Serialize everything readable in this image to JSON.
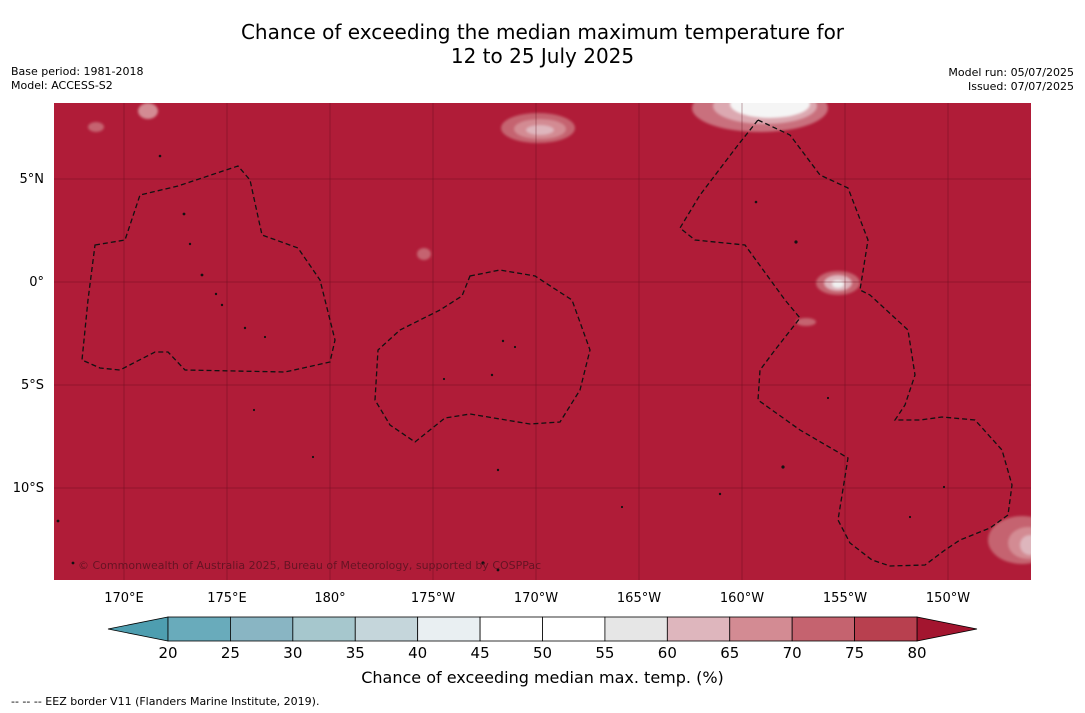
{
  "header": {
    "title_line1": "Chance of exceeding the median maximum temperature for",
    "title_line2": "12 to 25 July 2025",
    "base_period": "Base period: 1981-2018",
    "model": "Model: ACCESS-S2",
    "model_run": "Model run: 05/07/2025",
    "issued": "Issued: 07/07/2025"
  },
  "map": {
    "attribution": "© Commonwealth of Australia 2025, Bureau of Meteorology, supported by COSPPac",
    "background_color": "#b01c38",
    "lat_labels": [
      "5°N",
      "0°",
      "5°S",
      "10°S"
    ],
    "lon_labels": [
      "170°E",
      "175°E",
      "180°",
      "175°W",
      "170°W",
      "165°W",
      "160°W",
      "155°W",
      "150°W"
    ]
  },
  "colorbar": {
    "ticks": [
      "20",
      "25",
      "30",
      "35",
      "40",
      "45",
      "50",
      "55",
      "60",
      "65",
      "70",
      "75",
      "80"
    ],
    "colors": [
      "#69abbb",
      "#89b5c3",
      "#a6c7cd",
      "#c5d6db",
      "#e9eff2",
      "#ffffff",
      "#ffffff",
      "#e6e6e6",
      "#deb6bd",
      "#d38b93",
      "#c5636f",
      "#b8404f"
    ],
    "under_color": "#4e9eb0",
    "over_color": "#a3152f",
    "label": "Chance of exceeding median max. temp. (%)"
  },
  "footnote": "--  --  -- EEZ border V11 (Flanders Marine Institute, 2019)."
}
